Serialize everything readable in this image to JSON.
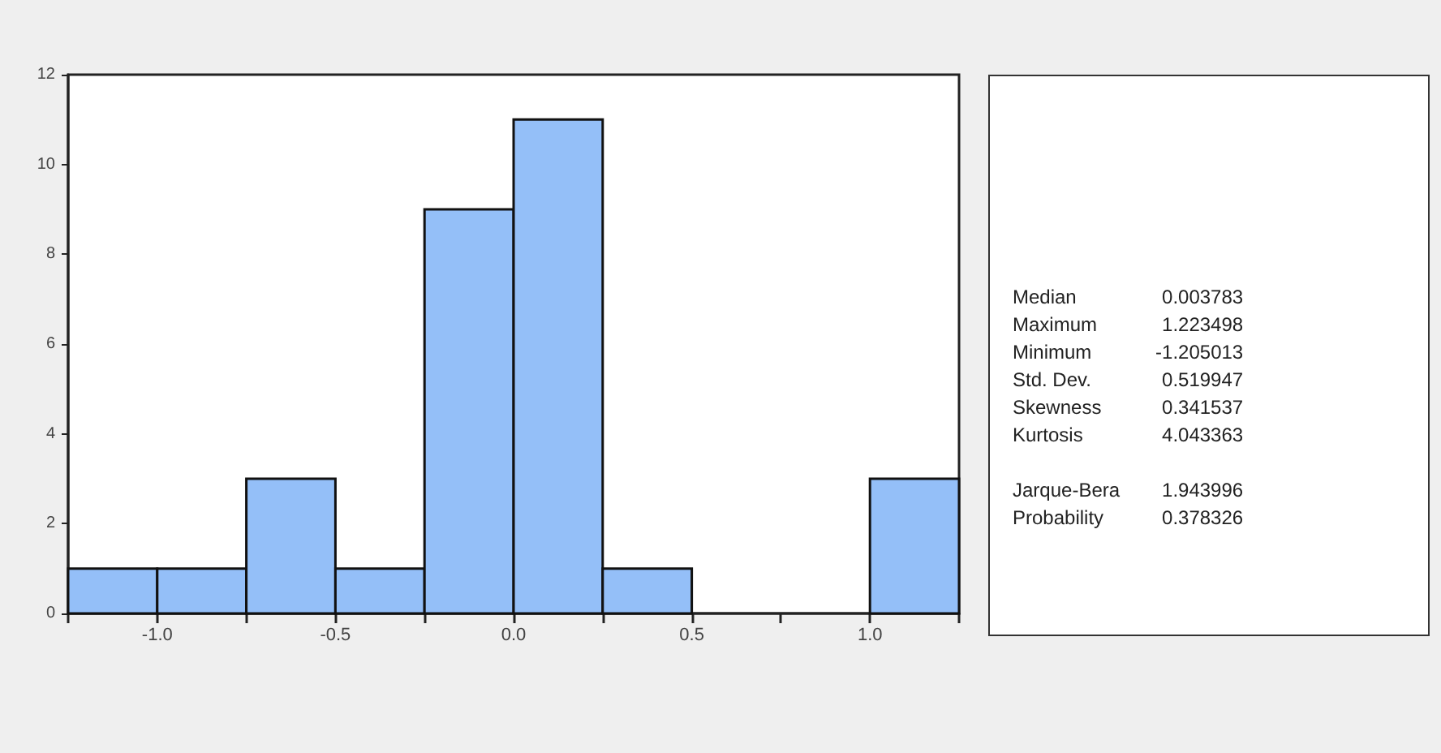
{
  "chart_data": [
    {
      "type": "histogram",
      "bins": [
        -1.25,
        -1.0,
        -0.75,
        -0.5,
        -0.25,
        0.0,
        0.25,
        0.5,
        0.75,
        1.0,
        1.25
      ],
      "values": [
        1,
        1,
        3,
        1,
        9,
        11,
        1,
        0,
        0,
        3
      ],
      "color": "#94bff8",
      "xlim": [
        -1.25,
        1.25
      ],
      "xticks": [
        {
          "value": -1.25,
          "label": null
        },
        {
          "value": -1.0,
          "label": "-1.0"
        },
        {
          "value": -0.75,
          "label": null
        },
        {
          "value": -0.5,
          "label": "-0.5"
        },
        {
          "value": -0.25,
          "label": null
        },
        {
          "value": 0.0,
          "label": "0.0"
        },
        {
          "value": 0.25,
          "label": null
        },
        {
          "value": 0.5,
          "label": "0.5"
        },
        {
          "value": 0.75,
          "label": null
        },
        {
          "value": 1.0,
          "label": "1.0"
        },
        {
          "value": 1.25,
          "label": null
        }
      ],
      "ylim": [
        0,
        12
      ],
      "yticks": [
        0,
        2,
        4,
        6,
        8,
        10,
        12
      ],
      "grid": false
    },
    {
      "type": "other",
      "annotations": [
        "Median",
        "0.003783",
        "Maximum",
        "1.223498",
        "Minimum",
        "-1.205013",
        "Std. Dev.",
        "0.519947",
        "Skewness",
        "0.341537",
        "Kurtosis",
        "4.043363",
        "Jarque-Bera",
        "1.943996",
        "Probability",
        "0.378326"
      ]
    }
  ]
}
